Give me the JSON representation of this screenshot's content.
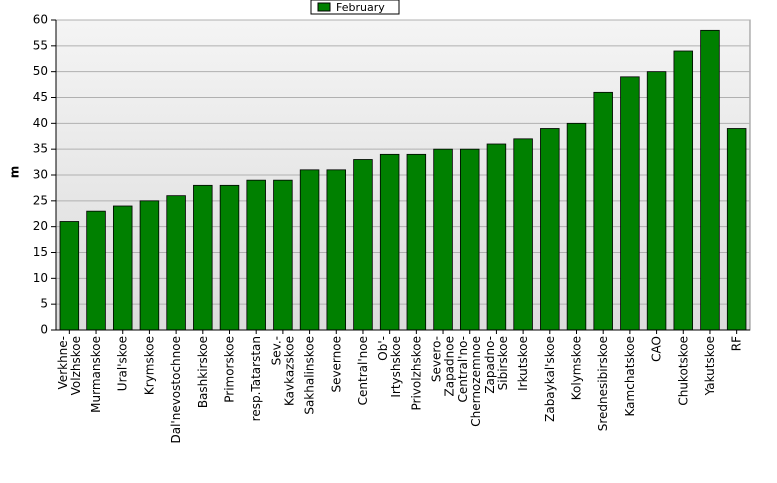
{
  "chart_data": {
    "type": "bar",
    "y_label": "m",
    "legend_position": "top",
    "series": [
      {
        "name": "February",
        "color": "#008000",
        "values": [
          21,
          23,
          24,
          25,
          26,
          28,
          28,
          29,
          29,
          31,
          31,
          33,
          34,
          34,
          35,
          35,
          36,
          37,
          39,
          40,
          46,
          49,
          50,
          54,
          58,
          39
        ]
      }
    ],
    "categories": [
      [
        "Verkhne-",
        "Volzhskoe"
      ],
      [
        "Murmanskoe"
      ],
      [
        "Ural'skoe"
      ],
      [
        "Krymskoe"
      ],
      [
        "Dal'nevostochnoe"
      ],
      [
        "Bashkirskoe"
      ],
      [
        "Primorskoe"
      ],
      [
        "resp.Tatarstan"
      ],
      [
        "Sev.-",
        "Kavkazskoe"
      ],
      [
        "Sakhalinskoe"
      ],
      [
        "Severnoe"
      ],
      [
        "Central'noe"
      ],
      [
        "Ob'-",
        "Irtyshskoe"
      ],
      [
        "Privolzhskoe"
      ],
      [
        "Severo-",
        "Zapadnoe"
      ],
      [
        "Central'no-",
        "Chernozemnoe"
      ],
      [
        "Zapadno-",
        "Sibirskoe"
      ],
      [
        "Irkutskoe"
      ],
      [
        "Zabaykal'skoe"
      ],
      [
        "Kolymskoe"
      ],
      [
        "Srednesibirskoe"
      ],
      [
        "Kamchatskoe"
      ],
      [
        "CAO"
      ],
      [
        "Chukotskoe"
      ],
      [
        "Yakutskoe"
      ],
      [
        "RF"
      ]
    ],
    "ylim": [
      0,
      60
    ],
    "yticks": [
      0,
      5,
      10,
      15,
      20,
      25,
      30,
      35,
      40,
      45,
      50,
      55,
      60
    ],
    "grid": true
  }
}
